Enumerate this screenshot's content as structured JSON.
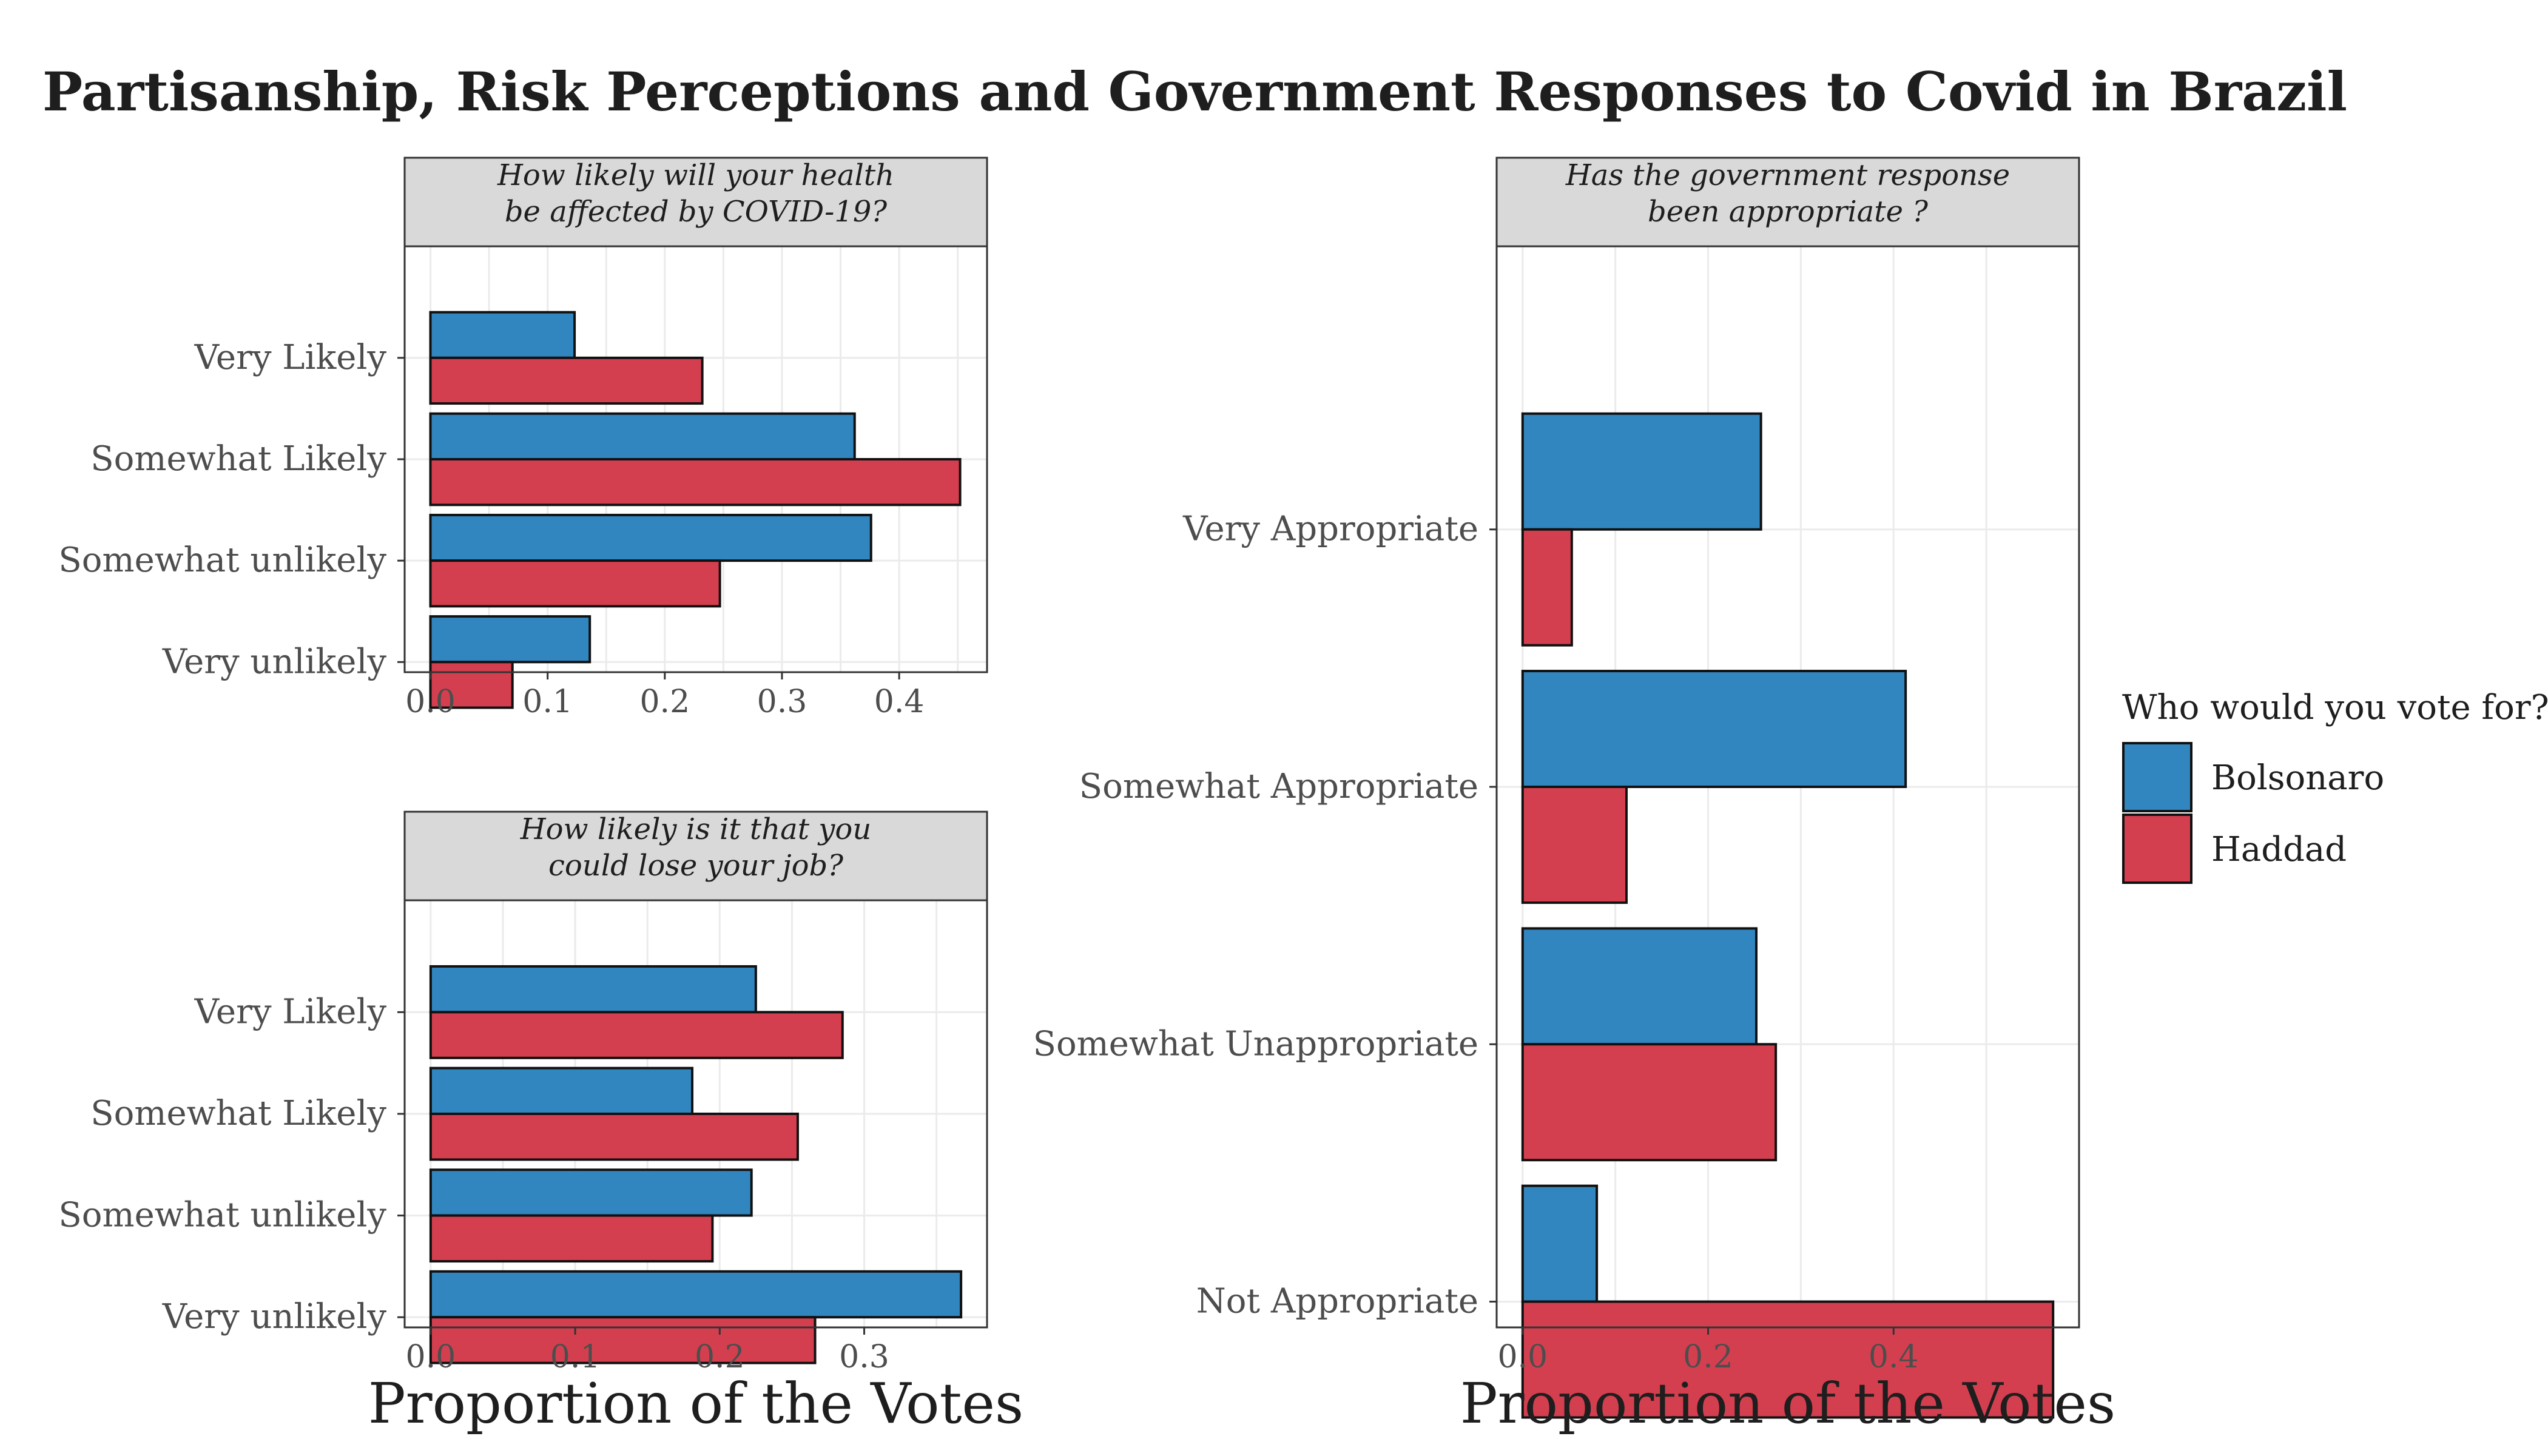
{
  "title": "Partisanship, Risk Perceptions and Government Responses to Covid in Brazil",
  "colors": {
    "bolsonaro": "#3186bf",
    "haddad": "#d43f4f",
    "strip": "#d9d9d9",
    "grid": "#ebebeb"
  },
  "chart_data": [
    {
      "type": "bar",
      "orientation": "horizontal",
      "title": "How likely will your health be affected by COVID-19?",
      "title_lines": [
        "How likely will your health",
        "be affected by COVID-19?"
      ],
      "categories": [
        "Very Likely",
        "Somewhat Likely",
        "Somewhat unlikely",
        "Very unlikely"
      ],
      "series": [
        {
          "name": "Bolsonaro",
          "values": [
            0.123,
            0.362,
            0.376,
            0.136
          ]
        },
        {
          "name": "Haddad",
          "values": [
            0.232,
            0.452,
            0.247,
            0.07
          ]
        }
      ],
      "xlabel": "",
      "xlim": [
        -0.022,
        0.475
      ],
      "xticks": [
        0.0,
        0.1,
        0.2,
        0.3,
        0.4
      ],
      "xtick_labels": [
        "0.0",
        "0.1",
        "0.2",
        "0.3",
        "0.4"
      ],
      "grid": true
    },
    {
      "type": "bar",
      "orientation": "horizontal",
      "title": "How likely is it that you could lose your job?",
      "title_lines": [
        "How likely is it that you",
        "could lose your job?"
      ],
      "categories": [
        "Very Likely",
        "Somewhat Likely",
        "Somewhat unlikely",
        "Very unlikely"
      ],
      "series": [
        {
          "name": "Bolsonaro",
          "values": [
            0.225,
            0.181,
            0.222,
            0.367
          ]
        },
        {
          "name": "Haddad",
          "values": [
            0.285,
            0.254,
            0.195,
            0.266
          ]
        }
      ],
      "xlabel": "Proportion of the Votes",
      "xlim": [
        -0.018,
        0.385
      ],
      "xticks": [
        0.0,
        0.1,
        0.2,
        0.3
      ],
      "xtick_labels": [
        "0.0",
        "0.1",
        "0.2",
        "0.3"
      ],
      "grid": true
    },
    {
      "type": "bar",
      "orientation": "horizontal",
      "title": "Has the government response been appropriate ?",
      "title_lines": [
        "Has the government response",
        "been appropriate ?"
      ],
      "categories": [
        "Very Appropriate",
        "Somewhat Appropriate",
        "Somewhat Unappropriate",
        "Not Appropriate"
      ],
      "series": [
        {
          "name": "Bolsonaro",
          "values": [
            0.257,
            0.413,
            0.252,
            0.08
          ]
        },
        {
          "name": "Haddad",
          "values": [
            0.053,
            0.112,
            0.273,
            0.572
          ]
        }
      ],
      "xlabel": "Proportion of the Votes",
      "xlim": [
        -0.028,
        0.6
      ],
      "xticks": [
        0.0,
        0.2,
        0.4
      ],
      "xtick_labels": [
        "0.0",
        "0.2",
        "0.4"
      ],
      "grid": true
    }
  ],
  "legend": {
    "title": "Who would you vote for?",
    "position": "right",
    "items": [
      {
        "label": "Bolsonaro",
        "color": "#3186bf"
      },
      {
        "label": "Haddad",
        "color": "#d43f4f"
      }
    ]
  }
}
